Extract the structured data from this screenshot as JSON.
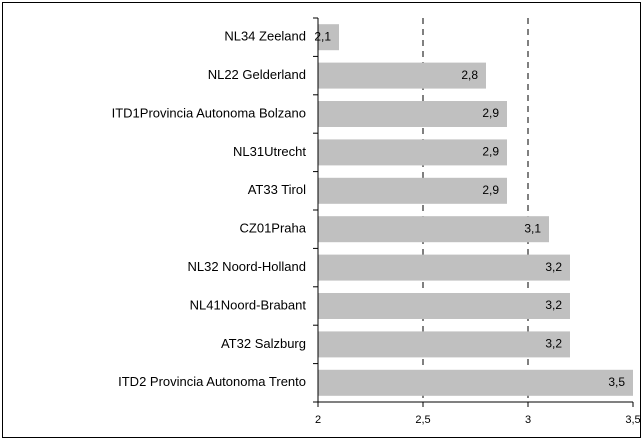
{
  "chart_data": {
    "type": "barh",
    "categories": [
      "NL34 Zeeland",
      "NL22 Gelderland",
      "ITD1Provincia Autonoma Bolzano",
      "NL31Utrecht",
      "AT33 Tirol",
      "CZ01Praha",
      "NL32 Noord-Holland",
      "NL41Noord-Brabant",
      "AT32 Salzburg",
      "ITD2 Provincia Autonoma Trento"
    ],
    "values": [
      2.1,
      2.8,
      2.9,
      2.9,
      2.9,
      3.1,
      3.2,
      3.2,
      3.2,
      3.5
    ],
    "value_labels": [
      "2,1",
      "2,8",
      "2,9",
      "2,9",
      "2,9",
      "3,1",
      "3,2",
      "3,2",
      "3,2",
      "3,5"
    ],
    "color": "#c0c0c0",
    "xlim": [
      2,
      3.5
    ],
    "xticks": [
      2,
      {
        "value": 2.5,
        "label": "2,5"
      },
      3,
      {
        "value": 3.5,
        "label": "3,5"
      }
    ],
    "grid": true
  }
}
